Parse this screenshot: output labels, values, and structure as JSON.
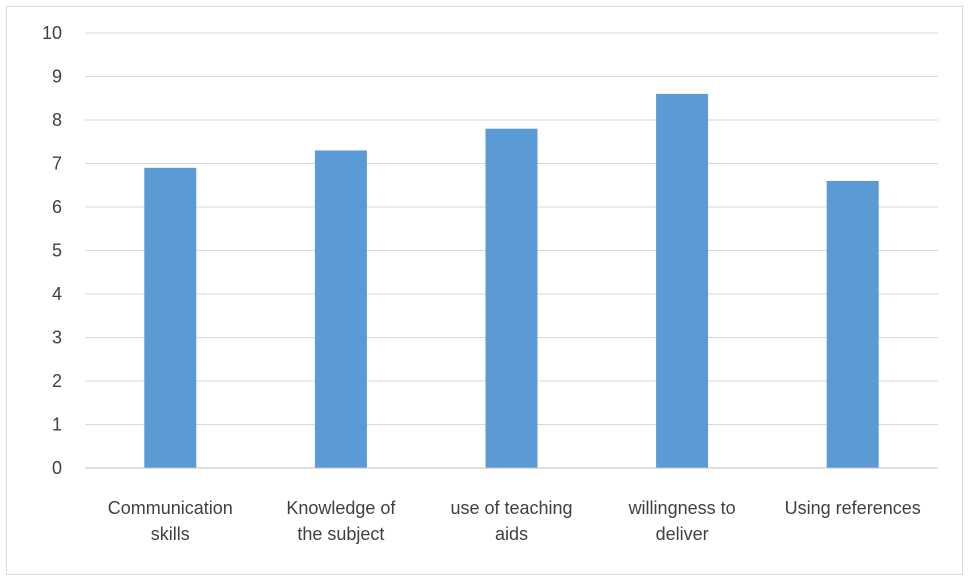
{
  "chart_data": {
    "type": "bar",
    "title": "",
    "xlabel": "",
    "ylabel": "",
    "categories": [
      [
        "Communication",
        "skills"
      ],
      [
        "Knowledge of",
        "the subject"
      ],
      [
        "use of teaching",
        "aids"
      ],
      [
        "willingness to",
        "deliver"
      ],
      [
        "Using references"
      ]
    ],
    "values": [
      6.9,
      7.3,
      7.8,
      8.6,
      6.6
    ],
    "ylim": [
      0,
      10
    ],
    "yticks": [
      0,
      1,
      2,
      3,
      4,
      5,
      6,
      7,
      8,
      9,
      10
    ],
    "grid": true,
    "legend": "none",
    "colors": {
      "bar": "#5b9bd5",
      "grid": "#d9d9d9",
      "axis": "#bfbfbf",
      "text": "#404040"
    }
  }
}
